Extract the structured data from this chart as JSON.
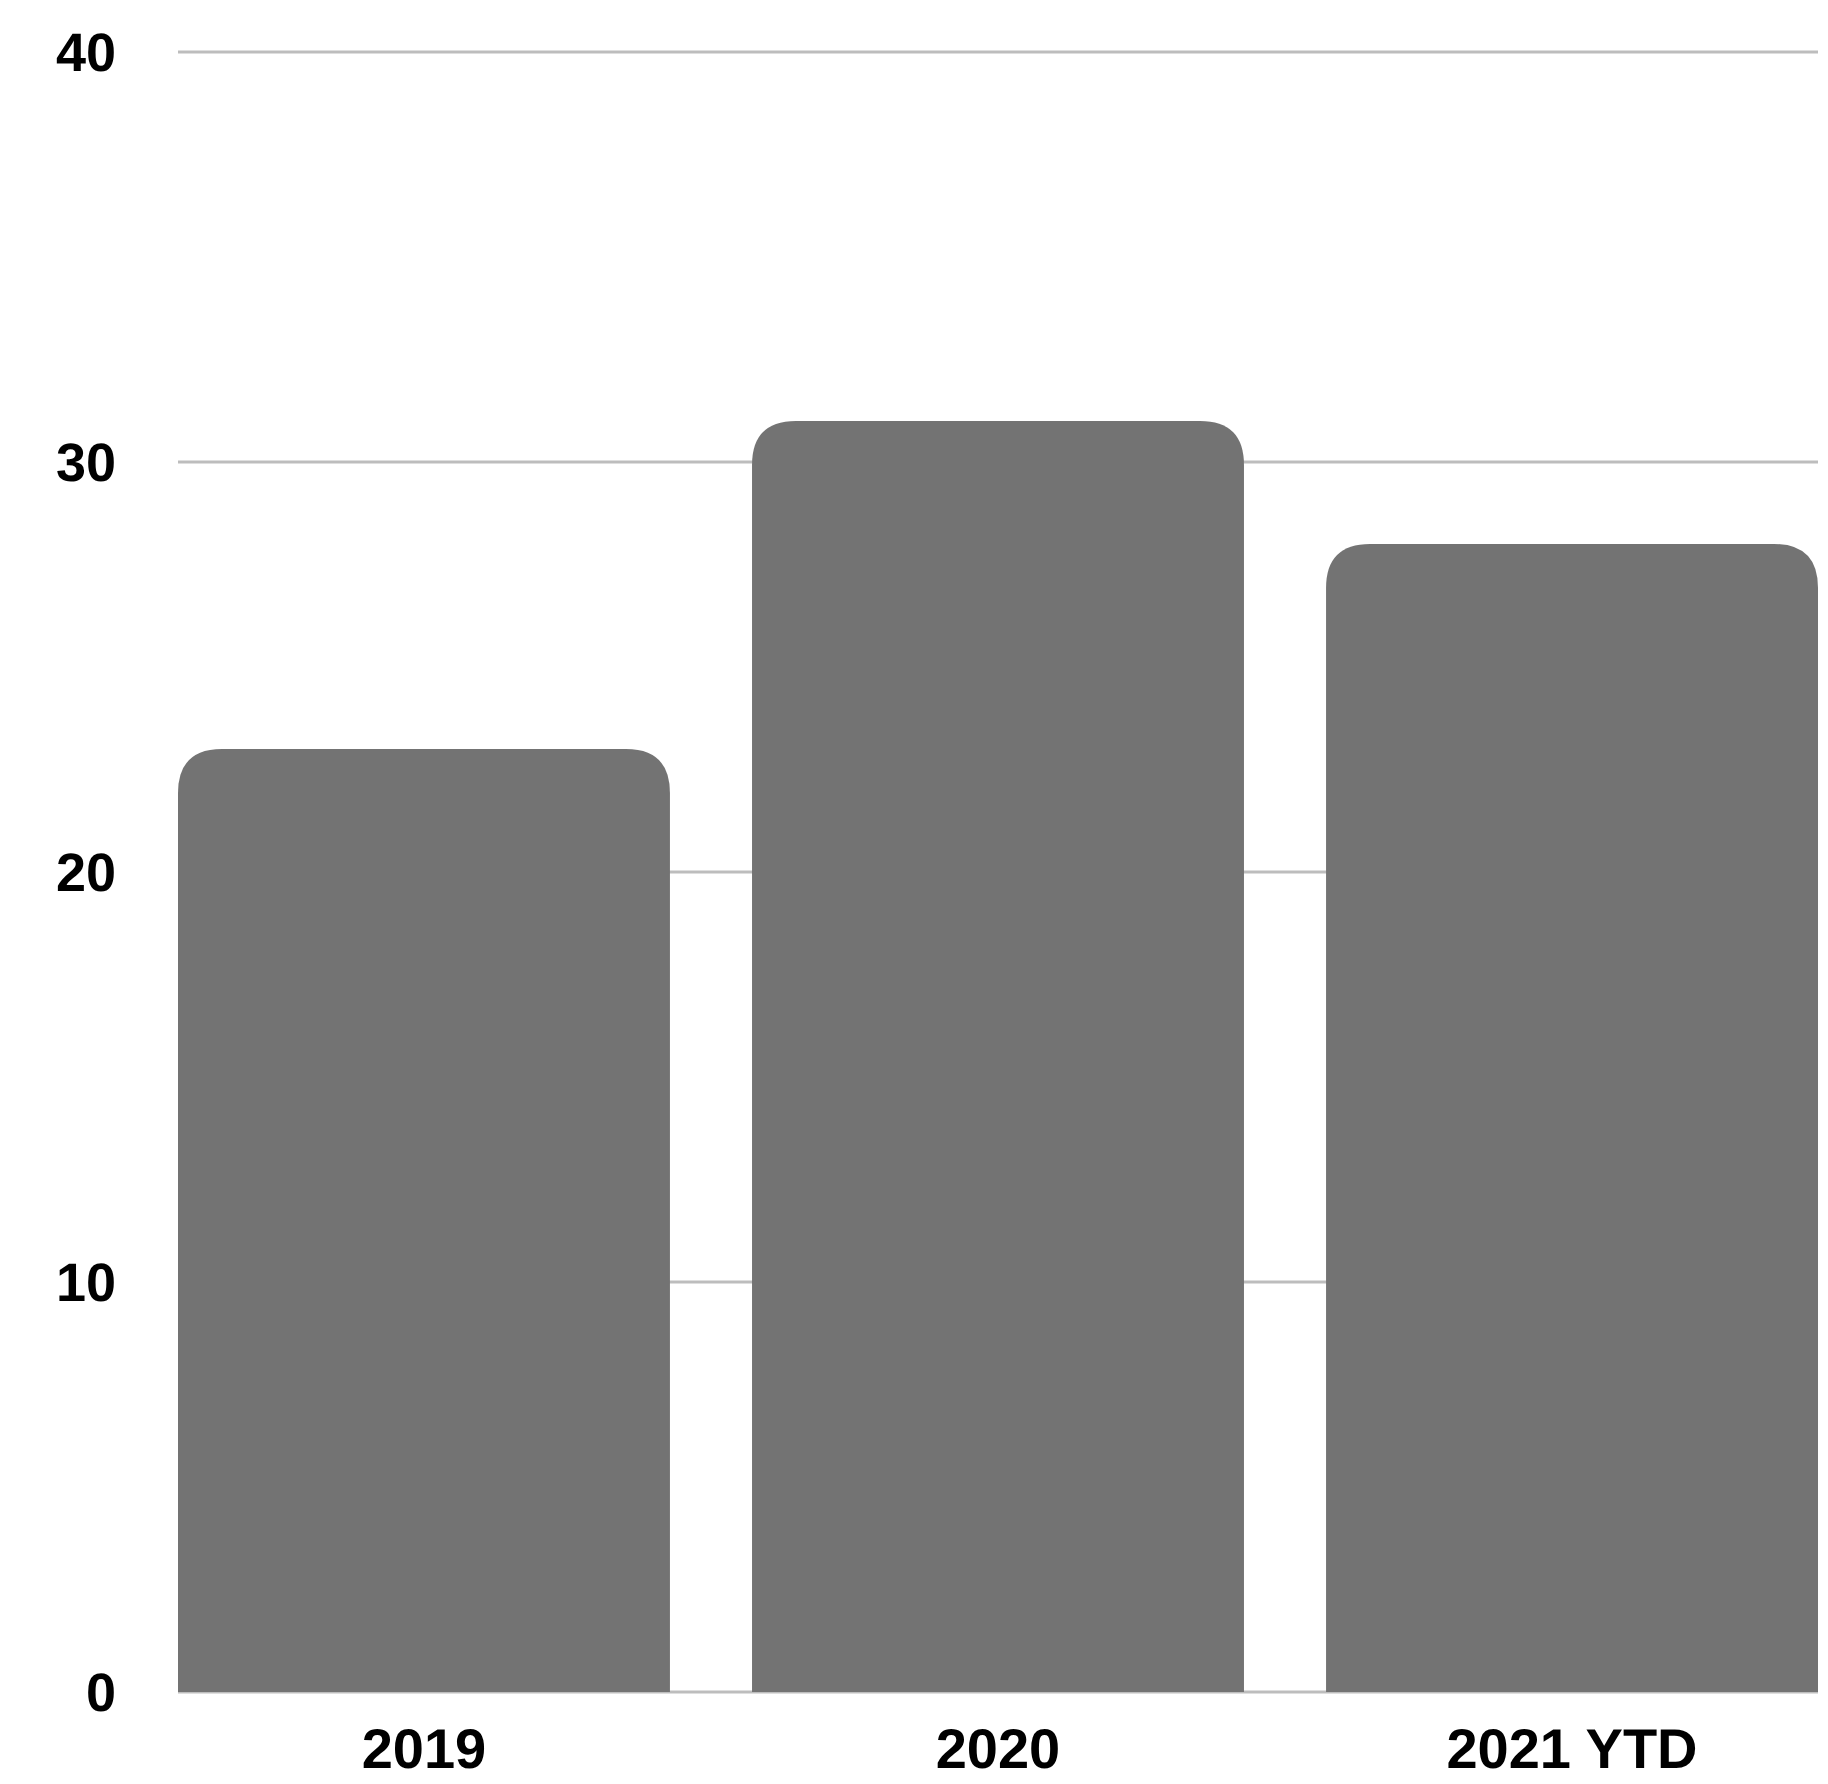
{
  "chart_data": {
    "type": "bar",
    "categories": [
      "2019",
      "2020",
      "2021 YTD"
    ],
    "values": [
      23,
      31,
      28
    ],
    "color": "#737373",
    "ylim": [
      0,
      40
    ],
    "yticks": [
      0,
      10,
      20,
      30,
      40
    ],
    "grid": "y"
  }
}
